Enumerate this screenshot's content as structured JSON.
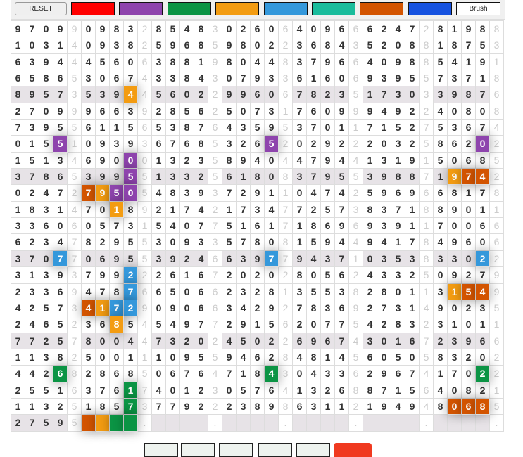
{
  "toolbar": {
    "reset_label": "RESET",
    "brush_label": "Brush",
    "swatches": [
      {
        "name": "red",
        "color": "#ff0000"
      },
      {
        "name": "purple",
        "color": "#8e44ad"
      },
      {
        "name": "green",
        "color": "#0b9444"
      },
      {
        "name": "orange",
        "color": "#f39c12"
      },
      {
        "name": "blue",
        "color": "#3498db"
      },
      {
        "name": "teal",
        "color": "#1abc9c"
      },
      {
        "name": "dark-orange",
        "color": "#d35400"
      },
      {
        "name": "royal-blue",
        "color": "#1652e0"
      }
    ]
  },
  "grid": {
    "banded_rows": [
      4,
      9,
      14,
      19,
      24
    ],
    "rows": [
      "97099098328548302606409666247281988",
      "10314093825968598022368435208818753",
      "63944456063881980448379664098854191",
      "65865306743384307933616069395573718",
      "89573539445602299606782351730339876",
      "27099966392856250731760999492240808",
      "73955611565387643595370117152753674",
      "01551093936768532652029222032586202",
      "15134690001323589404479441319150685",
      "37865399551332561808379553988719742",
      "02472795054839372911047425969668178",
      "18314701892174217347725738371889011",
      "33606057315407751617186969391170066",
      "62347829553093357808159449417849606",
      "37077069553924663977943710353833022",
      "31393799222616720202805624332509279",
      "23369478766506623281355382801131549",
      "42573417290906634292783692731490235",
      "24652368545497729156207754283231011",
      "77257800447320245022696743016723966",
      "11382500111095594628481456050583202",
      "44268286850676471843043362967417022",
      "25516376174012305764132688715640821",
      "11325185737792223898631121949480685",
      "27595    .    .    .    .    .    ."
    ],
    "highlights": [
      {
        "row": 4,
        "col": 8,
        "color": "#f39c12"
      },
      {
        "row": 7,
        "col": 3,
        "color": "#8e44ad"
      },
      {
        "row": 7,
        "col": 18,
        "color": "#8e44ad"
      },
      {
        "row": 7,
        "col": 33,
        "color": "#8e44ad"
      },
      {
        "row": 8,
        "col": 8,
        "color": "#8e44ad"
      },
      {
        "row": 9,
        "col": 8,
        "color": "#8e44ad"
      },
      {
        "row": 9,
        "col": 31,
        "color": "#f39c12"
      },
      {
        "row": 9,
        "col": 32,
        "color": "#d35400"
      },
      {
        "row": 9,
        "col": 33,
        "color": "#d35400"
      },
      {
        "row": 10,
        "col": 5,
        "color": "#d35400"
      },
      {
        "row": 10,
        "col": 6,
        "color": "#f39c12"
      },
      {
        "row": 10,
        "col": 7,
        "color": "#8e44ad"
      },
      {
        "row": 10,
        "col": 8,
        "color": "#8e44ad"
      },
      {
        "row": 11,
        "col": 7,
        "color": "#f39c12"
      },
      {
        "row": 14,
        "col": 3,
        "color": "#3498db"
      },
      {
        "row": 14,
        "col": 18,
        "color": "#3498db"
      },
      {
        "row": 14,
        "col": 33,
        "color": "#3498db"
      },
      {
        "row": 15,
        "col": 8,
        "color": "#3498db"
      },
      {
        "row": 16,
        "col": 8,
        "color": "#3498db"
      },
      {
        "row": 16,
        "col": 31,
        "color": "#f39c12"
      },
      {
        "row": 16,
        "col": 32,
        "color": "#d35400"
      },
      {
        "row": 16,
        "col": 33,
        "color": "#d35400"
      },
      {
        "row": 17,
        "col": 5,
        "color": "#d35400"
      },
      {
        "row": 17,
        "col": 6,
        "color": "#f39c12"
      },
      {
        "row": 17,
        "col": 7,
        "color": "#3498db"
      },
      {
        "row": 17,
        "col": 8,
        "color": "#3498db"
      },
      {
        "row": 18,
        "col": 7,
        "color": "#f39c12"
      },
      {
        "row": 21,
        "col": 3,
        "color": "#0b9444"
      },
      {
        "row": 21,
        "col": 18,
        "color": "#0b9444"
      },
      {
        "row": 21,
        "col": 33,
        "color": "#0b9444"
      },
      {
        "row": 22,
        "col": 8,
        "color": "#0b9444"
      },
      {
        "row": 23,
        "col": 8,
        "color": "#0b9444"
      },
      {
        "row": 23,
        "col": 31,
        "color": "#d35400"
      },
      {
        "row": 23,
        "col": 32,
        "color": "#d35400"
      },
      {
        "row": 23,
        "col": 33,
        "color": "#d35400"
      },
      {
        "row": 24,
        "col": 5,
        "color": "#d35400"
      },
      {
        "row": 24,
        "col": 6,
        "color": "#f39c12"
      },
      {
        "row": 24,
        "col": 7,
        "color": "#0b9444"
      },
      {
        "row": 24,
        "col": 8,
        "color": "#0b9444"
      }
    ]
  },
  "bottom_buttons": [
    {
      "name": "slot-1",
      "color": "#eef3ef"
    },
    {
      "name": "slot-2",
      "color": "#eef3ef"
    },
    {
      "name": "slot-3",
      "color": "#eef3ef"
    },
    {
      "name": "slot-4",
      "color": "#eef3ef"
    },
    {
      "name": "slot-5",
      "color": "#eef3ef"
    },
    {
      "name": "red-action",
      "color": "#f0391f"
    }
  ]
}
